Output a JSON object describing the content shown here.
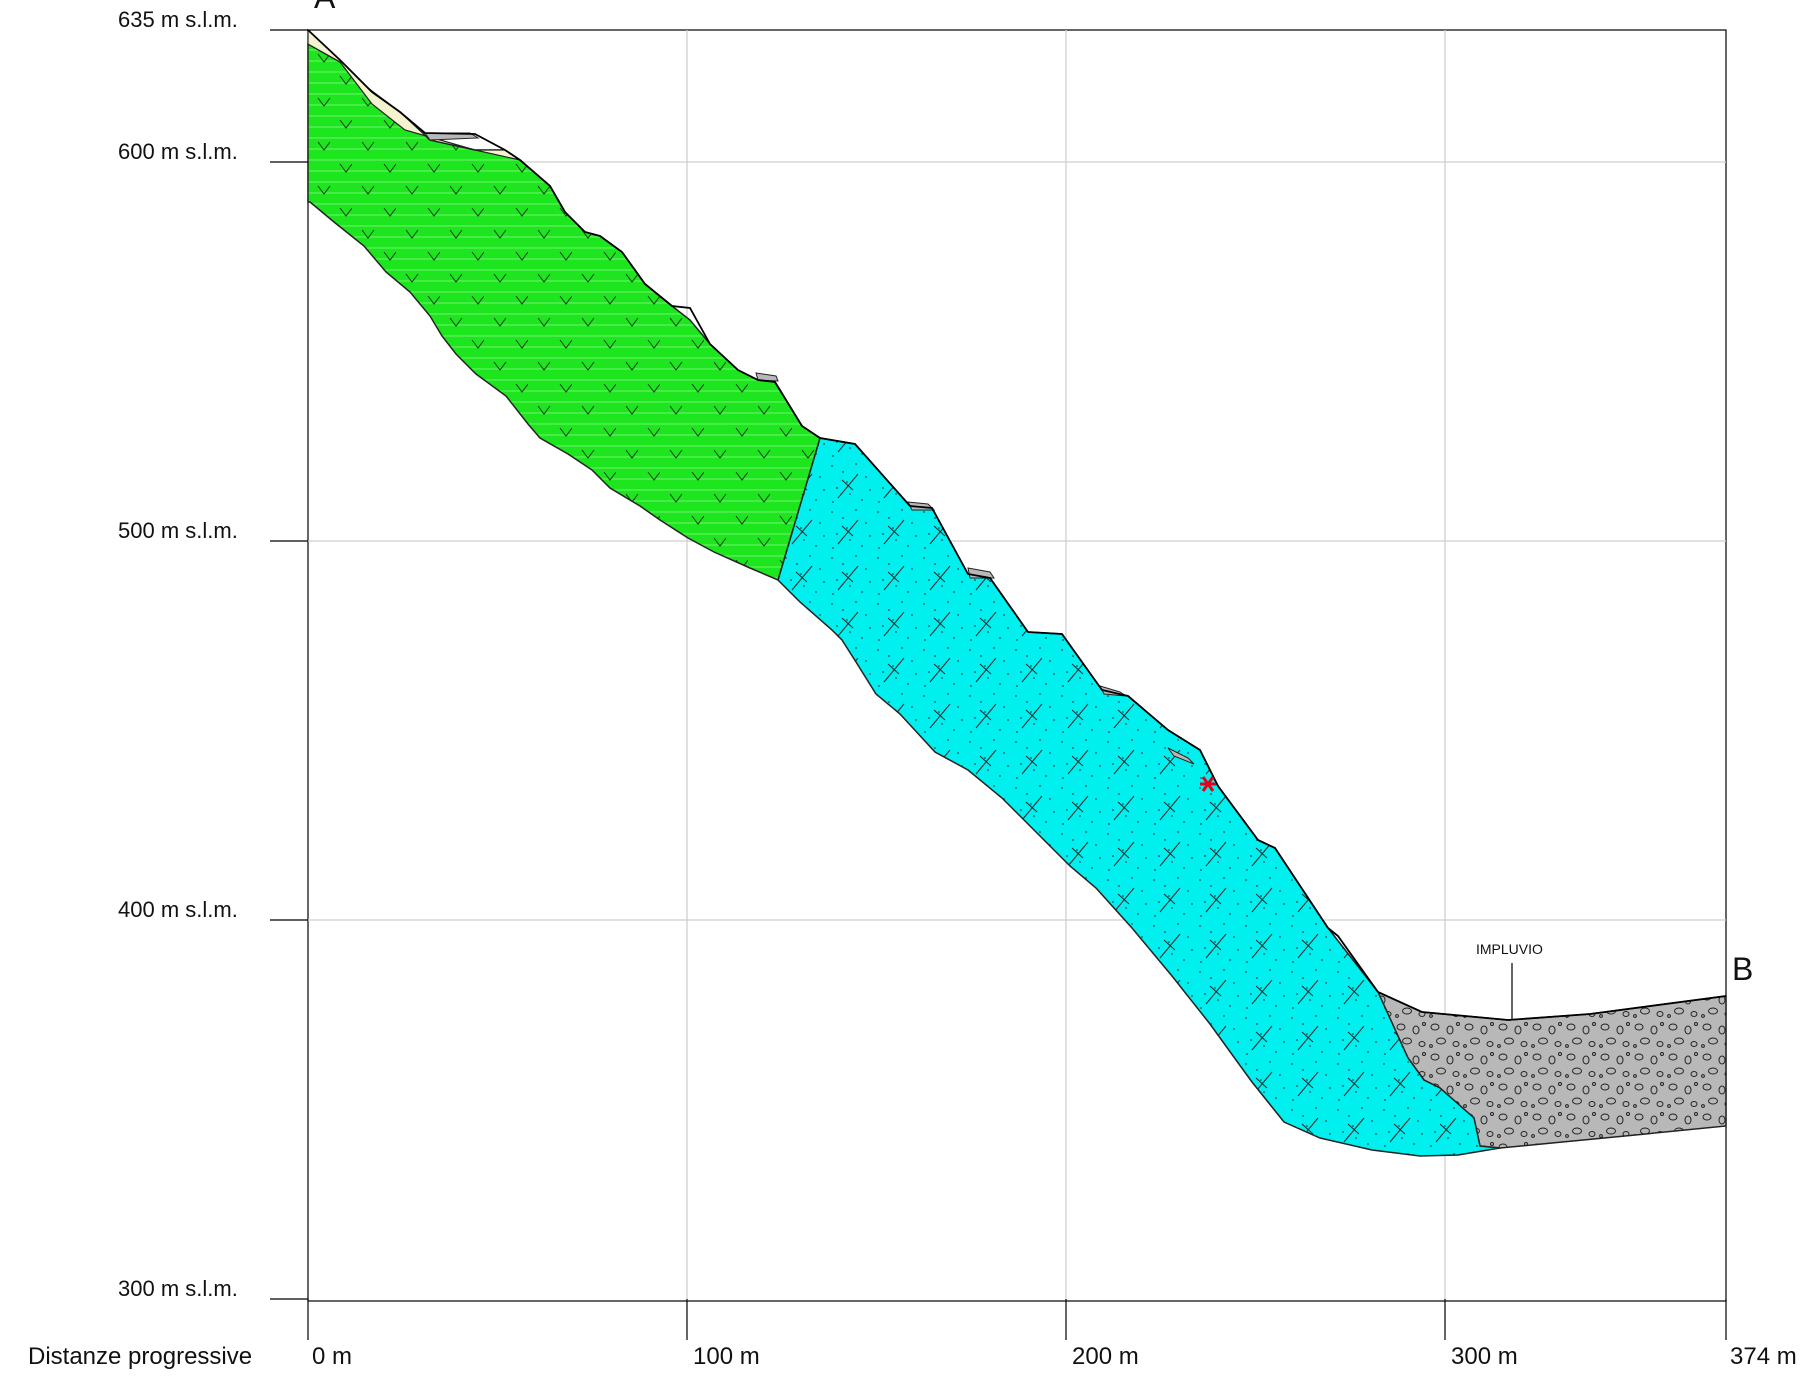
{
  "profile": {
    "start_point": "A",
    "end_point": "B",
    "axis_title": "Distanze progressive",
    "elevation_ticks": [
      {
        "value": 635,
        "label": "635 m s.l.m."
      },
      {
        "value": 600,
        "label": "600 m s.l.m."
      },
      {
        "value": 500,
        "label": "500 m s.l.m."
      },
      {
        "value": 400,
        "label": "400 m s.l.m."
      },
      {
        "value": 300,
        "label": "300 m s.l.m."
      }
    ],
    "distance_ticks": [
      {
        "value": 0,
        "label": "0 m"
      },
      {
        "value": 100,
        "label": "100 m"
      },
      {
        "value": 200,
        "label": "200 m"
      },
      {
        "value": 300,
        "label": "300 m"
      },
      {
        "value": 374,
        "label": "374 m"
      }
    ],
    "annotation": "IMPLUVIO",
    "colors": {
      "unit_green": "#1ee61e",
      "unit_cyan": "#00f0f0",
      "alluvium": "#b8b8b8",
      "cover": "#f5f2d0",
      "marker": "#e3001b",
      "grid": "#cfcfcf"
    },
    "icons": {
      "marker": "red-asterisk-icon"
    }
  }
}
